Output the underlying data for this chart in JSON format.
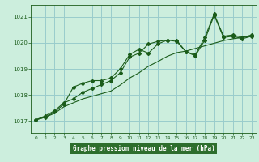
{
  "title": "Graphe pression niveau de la mer (hPa)",
  "bg_color": "#cceedd",
  "plot_bg_color": "#cceedd",
  "bottom_bg_color": "#2d6e2d",
  "grid_color": "#99cccc",
  "line_color": "#1a5c1a",
  "label_color": "#1a5c1a",
  "bottom_text_color": "#ffffff",
  "xlim": [
    -0.5,
    23.5
  ],
  "ylim": [
    1016.55,
    1021.45
  ],
  "yticks": [
    1017,
    1018,
    1019,
    1020,
    1021
  ],
  "xticks": [
    0,
    1,
    2,
    3,
    4,
    5,
    6,
    7,
    8,
    9,
    10,
    11,
    12,
    13,
    14,
    15,
    16,
    17,
    18,
    19,
    20,
    21,
    22,
    23
  ],
  "line1_x": [
    0,
    1,
    2,
    3,
    4,
    5,
    6,
    7,
    8,
    9,
    10,
    11,
    12,
    13,
    14,
    15,
    16,
    17,
    18,
    19,
    20,
    21,
    22,
    23
  ],
  "line1_y": [
    1017.05,
    1017.15,
    1017.35,
    1017.65,
    1018.3,
    1018.45,
    1018.55,
    1018.55,
    1018.65,
    1019.0,
    1019.55,
    1019.75,
    1019.6,
    1019.95,
    1020.1,
    1020.1,
    1019.65,
    1019.55,
    1020.2,
    1021.1,
    1020.25,
    1020.3,
    1020.2,
    1020.3
  ],
  "line2_x": [
    0,
    1,
    2,
    3,
    4,
    5,
    6,
    7,
    8,
    9,
    10,
    11,
    12,
    13,
    14,
    15,
    16,
    17,
    18,
    19,
    20,
    21,
    22,
    23
  ],
  "line2_y": [
    1017.05,
    1017.2,
    1017.4,
    1017.7,
    1017.85,
    1018.1,
    1018.25,
    1018.4,
    1018.55,
    1018.85,
    1019.45,
    1019.6,
    1019.95,
    1020.05,
    1020.1,
    1020.05,
    1019.65,
    1019.5,
    1020.1,
    1021.05,
    1020.2,
    1020.25,
    1020.15,
    1020.25
  ],
  "line3_x": [
    0,
    1,
    2,
    3,
    4,
    5,
    6,
    7,
    8,
    9,
    10,
    11,
    12,
    13,
    14,
    15,
    16,
    17,
    18,
    19,
    20,
    21,
    22,
    23
  ],
  "line3_y": [
    1017.05,
    1017.15,
    1017.3,
    1017.55,
    1017.7,
    1017.85,
    1017.95,
    1018.05,
    1018.15,
    1018.38,
    1018.65,
    1018.85,
    1019.1,
    1019.28,
    1019.48,
    1019.62,
    1019.68,
    1019.78,
    1019.88,
    1019.98,
    1020.08,
    1020.15,
    1020.2,
    1020.25
  ]
}
